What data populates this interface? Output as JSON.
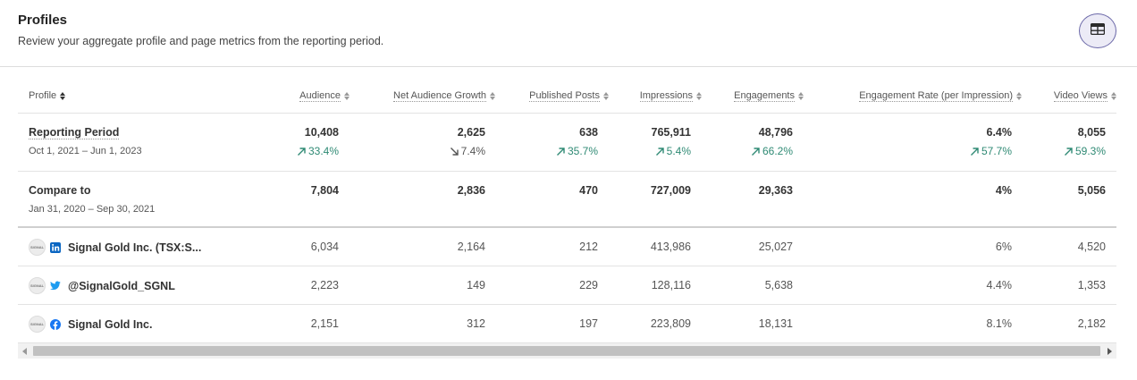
{
  "header": {
    "title": "Profiles",
    "subtitle": "Review your aggregate profile and page metrics from the reporting period.",
    "toggle_icon": "table-icon"
  },
  "columns": [
    {
      "key": "profile",
      "label": "Profile"
    },
    {
      "key": "audience",
      "label": "Audience"
    },
    {
      "key": "net_growth",
      "label": "Net Audience Growth"
    },
    {
      "key": "posts",
      "label": "Published Posts"
    },
    {
      "key": "impressions",
      "label": "Impressions"
    },
    {
      "key": "engagements",
      "label": "Engagements"
    },
    {
      "key": "eng_rate",
      "label": "Engagement Rate (per Impression)"
    },
    {
      "key": "video_views",
      "label": "Video Views"
    }
  ],
  "reporting_period": {
    "label": "Reporting Period",
    "dates": "Oct 1, 2021 – Jun 1, 2023",
    "values": [
      "10,408",
      "2,625",
      "638",
      "765,911",
      "48,796",
      "6.4%",
      "8,055"
    ],
    "changes": [
      {
        "text": "33.4%",
        "dir": "up"
      },
      {
        "text": "7.4%",
        "dir": "down"
      },
      {
        "text": "35.7%",
        "dir": "up"
      },
      {
        "text": "5.4%",
        "dir": "up"
      },
      {
        "text": "66.2%",
        "dir": "up"
      },
      {
        "text": "57.7%",
        "dir": "up"
      },
      {
        "text": "59.3%",
        "dir": "up"
      }
    ]
  },
  "compare_to": {
    "label": "Compare to",
    "dates": "Jan 31, 2020 – Sep 30, 2021",
    "values": [
      "7,804",
      "2,836",
      "470",
      "727,009",
      "29,363",
      "4%",
      "5,056"
    ]
  },
  "profiles": [
    {
      "name": "Signal Gold Inc. (TSX:S...",
      "network": "linkedin",
      "avatar_text": "SIGNAL",
      "values": [
        "6,034",
        "2,164",
        "212",
        "413,986",
        "25,027",
        "6%",
        "4,520"
      ]
    },
    {
      "name": "@SignalGold_SGNL",
      "network": "twitter",
      "avatar_text": "SIGNAL",
      "values": [
        "2,223",
        "149",
        "229",
        "128,116",
        "5,638",
        "4.4%",
        "1,353"
      ]
    },
    {
      "name": "Signal Gold Inc.",
      "network": "facebook",
      "avatar_text": "SIGNAL",
      "values": [
        "2,151",
        "312",
        "197",
        "223,809",
        "18,131",
        "8.1%",
        "2,182"
      ]
    }
  ],
  "colors": {
    "positive": "#2f8a74",
    "linkedin": "#0a66c2",
    "twitter": "#1d9bf0",
    "facebook": "#1877f2",
    "accent": "#6b68a8"
  }
}
